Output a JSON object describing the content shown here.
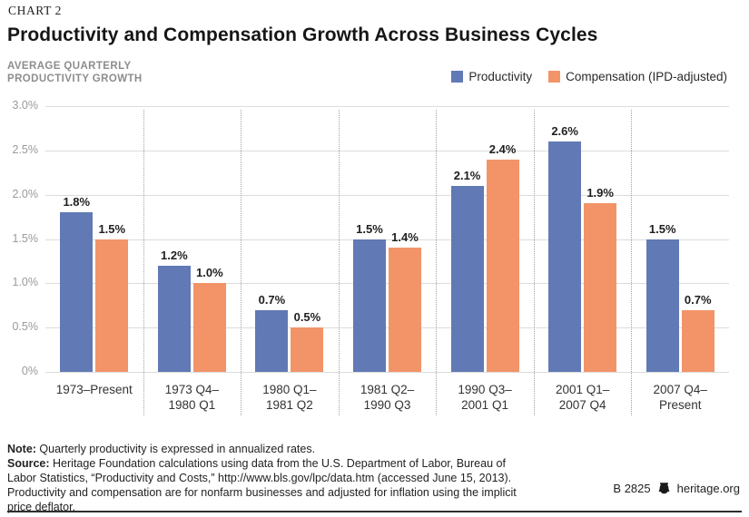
{
  "page": {
    "eyebrow": "CHART 2",
    "title": "Productivity and Compensation Growth Across Business Cycles",
    "footer_id": "B 2825",
    "footer_site": "heritage.org",
    "bell_icon": "liberty-bell-icon"
  },
  "notes": {
    "note_label": "Note:",
    "note_text": " Quarterly productivity is expressed in annualized rates.",
    "source_label": "Source:",
    "source_text": " Heritage Foundation calculations using data from the U.S. Department of Labor, Bureau of Labor Statistics, “Productivity and Costs,” http://www.bls.gov/lpc/data.htm (accessed June 15, 2013). Productivity and compensation are for nonfarm businesses and adjusted for inflation using the implicit price deflator."
  },
  "chart_data": {
    "type": "bar",
    "title": "Productivity and Compensation Growth Across Business Cycles",
    "ylabel": "AVERAGE QUARTERLY\nPRODUCTIVITY GROWTH",
    "xlabel": "",
    "categories": [
      "1973–Present",
      "1973 Q4–\n1980 Q1",
      "1980 Q1–\n1981 Q2",
      "1981 Q2–\n1990 Q3",
      "1990 Q3–\n2001 Q1",
      "2001 Q1–\n2007 Q4",
      "2007 Q4–\nPresent"
    ],
    "series": [
      {
        "name": "Productivity",
        "color": "#6179b4",
        "values": [
          1.8,
          1.2,
          0.7,
          1.5,
          2.1,
          2.6,
          1.5
        ],
        "labels": [
          "1.8%",
          "1.2%",
          "0.7%",
          "1.5%",
          "2.1%",
          "2.6%",
          "1.5%"
        ]
      },
      {
        "name": "Compensation (IPD-adjusted)",
        "color": "#f29468",
        "values": [
          1.5,
          1.0,
          0.5,
          1.4,
          2.4,
          1.9,
          0.7
        ],
        "labels": [
          "1.5%",
          "1.0%",
          "0.5%",
          "1.4%",
          "2.4%",
          "1.9%",
          "0.7%"
        ]
      }
    ],
    "ylim": [
      0,
      3.0
    ],
    "yticks": [
      "3.0%",
      "2.5%",
      "2.0%",
      "1.5%",
      "1.0%",
      "0.5%",
      "0%"
    ],
    "grid": true,
    "group_separators": "dotted",
    "legend_position": "top-right"
  }
}
